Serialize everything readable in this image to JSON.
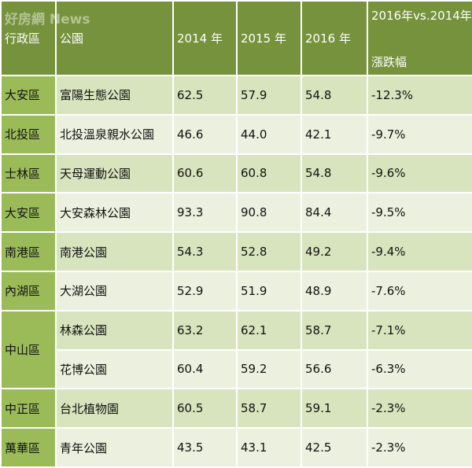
{
  "watermark": "好房網 News",
  "table": {
    "header": [
      "行政區",
      "公園",
      "2014 年",
      "2015 年",
      "2016 年",
      [
        "2016年vs.2014年",
        "漲跌幅"
      ]
    ],
    "rows": [
      [
        "大安區",
        "富陽生態公園",
        "62.5",
        "57.9",
        "54.8",
        "-12.3%"
      ],
      [
        "北投區",
        "北投溫泉親水公園",
        "46.6",
        "44.0",
        "42.1",
        "-9.7%"
      ],
      [
        "士林區",
        "天母運動公園",
        "60.6",
        "60.8",
        "54.8",
        "-9.6%"
      ],
      [
        "大安區",
        "大安森林公園",
        "93.3",
        "90.8",
        "84.4",
        "-9.5%"
      ],
      [
        "南港區",
        "南港公園",
        "54.3",
        "52.8",
        "49.2",
        "-9.4%"
      ],
      [
        "內湖區",
        "大湖公園",
        "52.9",
        "51.9",
        "48.9",
        "-7.6%"
      ],
      [
        "中山區",
        "林森公園",
        "63.2",
        "62.1",
        "58.7",
        "-7.1%"
      ],
      [
        null,
        "花博公園",
        "60.4",
        "59.2",
        "56.6",
        "-6.3%"
      ],
      [
        "中正區",
        "台北植物園",
        "60.5",
        "58.7",
        "59.1",
        "-2.3%"
      ],
      [
        "萬華區",
        "青年公園",
        "43.5",
        "43.1",
        "42.5",
        "-2.3%"
      ]
    ]
  }
}
